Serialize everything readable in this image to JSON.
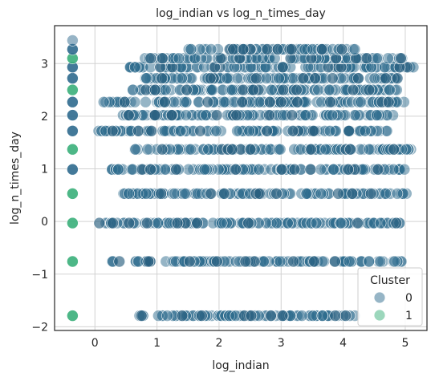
{
  "chart_data": {
    "type": "scatter",
    "title": "log_indian vs log_n_times_day",
    "xlabel": "log_indian",
    "ylabel": "log_n_times_day",
    "xlim": [
      -0.65,
      5.35
    ],
    "ylim": [
      -2.07,
      3.72
    ],
    "xticks": [
      0,
      1,
      2,
      3,
      4,
      5
    ],
    "yticks": [
      -2,
      -1,
      0,
      1,
      2,
      3
    ],
    "grid": true,
    "legend": {
      "title": "Cluster",
      "placement": "lower-right",
      "entries": [
        "0",
        "1"
      ]
    },
    "colors": {
      "cluster_0": "#2e6b8e",
      "cluster_1": "#3aaf7a"
    },
    "y_levels": [
      -1.79,
      -0.76,
      -0.03,
      0.53,
      0.99,
      1.37,
      1.72,
      2.02,
      2.27,
      2.5,
      2.72,
      2.93,
      3.1,
      3.27
    ],
    "cluster_0": {
      "x_range_by_level": [
        [
          0.7,
          4.2
        ],
        [
          0.25,
          4.95
        ],
        [
          0.05,
          4.95
        ],
        [
          0.4,
          5.05
        ],
        [
          0.25,
          5.1
        ],
        [
          0.6,
          5.1
        ],
        [
          0.05,
          4.85
        ],
        [
          0.45,
          4.9
        ],
        [
          0.1,
          5.0
        ],
        [
          0.6,
          5.0
        ],
        [
          0.8,
          5.0
        ],
        [
          0.5,
          5.15
        ],
        [
          0.8,
          4.95
        ],
        [
          1.5,
          4.2
        ]
      ]
    },
    "cluster_1": {
      "x": -0.36,
      "y": [
        -1.79,
        -0.76,
        -0.03,
        0.53,
        0.99,
        1.37,
        1.72,
        2.02,
        2.27,
        2.5,
        2.72,
        2.93,
        3.1,
        3.27,
        3.44
      ]
    }
  }
}
